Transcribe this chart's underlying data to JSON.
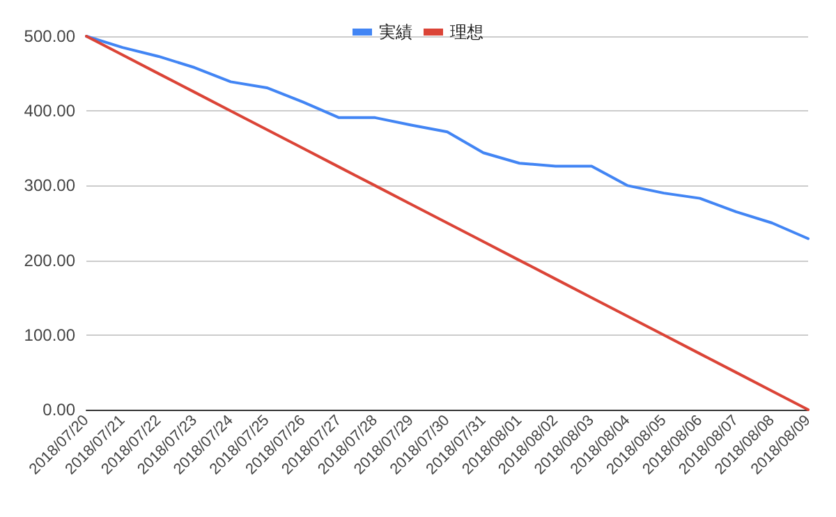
{
  "chart_data": {
    "type": "line",
    "categories": [
      "2018/07/20",
      "2018/07/21",
      "2018/07/22",
      "2018/07/23",
      "2018/07/24",
      "2018/07/25",
      "2018/07/26",
      "2018/07/27",
      "2018/07/28",
      "2018/07/29",
      "2018/07/30",
      "2018/07/31",
      "2018/08/01",
      "2018/08/02",
      "2018/08/03",
      "2018/08/04",
      "2018/08/05",
      "2018/08/06",
      "2018/08/07",
      "2018/08/08",
      "2018/08/09"
    ],
    "series": [
      {
        "name": "実績",
        "color": "#4285f4",
        "values": [
          500,
          485,
          473,
          458,
          439,
          431,
          412,
          391,
          391,
          381,
          372,
          344,
          330,
          326,
          326,
          300,
          290,
          283,
          265,
          250,
          229
        ]
      },
      {
        "name": "理想",
        "color": "#db4437",
        "values": [
          500,
          475,
          450,
          425,
          400,
          375,
          350,
          325,
          300,
          275,
          250,
          225,
          200,
          175,
          150,
          125,
          100,
          75,
          50,
          25,
          0
        ]
      }
    ],
    "ylim": [
      0,
      500
    ],
    "yticks": [
      {
        "value": 0,
        "label": "0.00"
      },
      {
        "value": 100,
        "label": "100.00"
      },
      {
        "value": 200,
        "label": "200.00"
      },
      {
        "value": 300,
        "label": "300.00"
      },
      {
        "value": 400,
        "label": "400.00"
      },
      {
        "value": 500,
        "label": "500.00"
      }
    ],
    "grid": "y",
    "legend": "top",
    "marker": "none",
    "line_style": "solid"
  }
}
